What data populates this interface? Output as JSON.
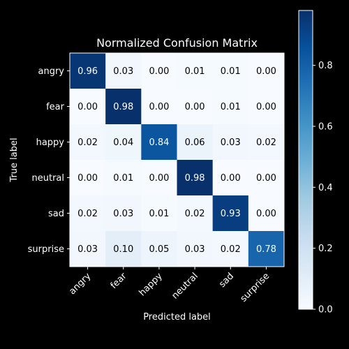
{
  "chart_data": {
    "type": "heatmap",
    "title": "Normalized Confusion Matrix",
    "xlabel": "Predicted label",
    "ylabel": "True label",
    "x_categories": [
      "angry",
      "fear",
      "happy",
      "neutral",
      "sad",
      "surprise"
    ],
    "y_categories": [
      "angry",
      "fear",
      "happy",
      "neutral",
      "sad",
      "surprise"
    ],
    "values": [
      [
        0.96,
        0.03,
        0.0,
        0.01,
        0.01,
        0.0
      ],
      [
        0.0,
        0.98,
        0.0,
        0.0,
        0.01,
        0.0
      ],
      [
        0.02,
        0.04,
        0.84,
        0.06,
        0.03,
        0.02
      ],
      [
        0.0,
        0.01,
        0.0,
        0.98,
        0.0,
        0.0
      ],
      [
        0.02,
        0.03,
        0.01,
        0.02,
        0.93,
        0.0
      ],
      [
        0.03,
        0.1,
        0.05,
        0.03,
        0.02,
        0.78
      ]
    ],
    "value_format": "0.00",
    "colormap": "Blues",
    "colorbar": {
      "range": [
        0.0,
        0.98
      ],
      "ticks": [
        0.0,
        0.2,
        0.4,
        0.6,
        0.8
      ],
      "tick_labels": [
        "0.0",
        "0.2",
        "0.4",
        "0.6",
        "0.8"
      ]
    }
  },
  "colors": {
    "background": "#000000",
    "text": "#ffffff",
    "cell_text_dark": "#000000",
    "cell_text_light": "#ffffff",
    "blues_low": "#f7fbff",
    "blues_high": "#08306b"
  }
}
